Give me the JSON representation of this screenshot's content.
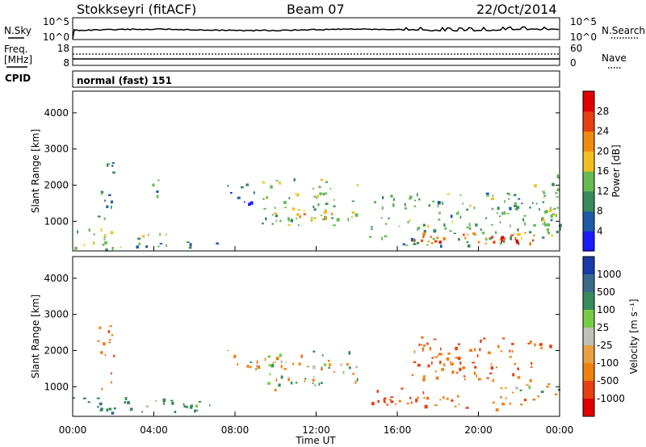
{
  "header": {
    "station": "Stokkseyri (fitACF)",
    "beam": "Beam 07",
    "date": "22/Oct/2014"
  },
  "noise_panel": {
    "left_label": "N.Sky",
    "left_ticks": [
      "10^5",
      "10^0"
    ],
    "right_ticks": [
      "10^5",
      "10^0"
    ],
    "right_label": "N.Search"
  },
  "freq_panel": {
    "left_label_1": "Freq.",
    "left_label_2": "[MHz]",
    "left_ticks": [
      "18",
      "8"
    ],
    "right_ticks": [
      "60",
      "0"
    ],
    "right_label": "Nave"
  },
  "cpid_panel": {
    "left_label": "CPID",
    "mode_text": "normal (fast) 151"
  },
  "x_axis": {
    "label": "Time UT",
    "ticks": [
      "00:00",
      "04:00",
      "08:00",
      "12:00",
      "16:00",
      "20:00",
      "00:00"
    ]
  },
  "y_axis": {
    "label": "Slant Range [km]",
    "ticks": [
      "1000",
      "2000",
      "3000",
      "4000"
    ]
  },
  "power_colorbar": {
    "label": "Power [dB]",
    "ticks": [
      "4",
      "8",
      "12",
      "16",
      "20",
      "24",
      "28"
    ],
    "colors": [
      "#1a1aff",
      "#1f5aa8",
      "#3a8a5a",
      "#66bb55",
      "#f0c020",
      "#f08a10",
      "#e84010",
      "#e00000"
    ]
  },
  "velocity_colorbar": {
    "label": "Velocity [m s⁻¹]",
    "ticks": [
      "1000",
      "500",
      "100",
      "25",
      "-25",
      "-100",
      "-500",
      "-1000"
    ],
    "colors": [
      "#1a3aa8",
      "#3a6a8a",
      "#3a8a5a",
      "#77cc44",
      "#c0c0b8",
      "#e8a040",
      "#f08010",
      "#e84010",
      "#e00000"
    ]
  },
  "chart_data": {
    "type": "heatmap",
    "title": "Stokkseyri (fitACF)",
    "xlabel": "Time UT",
    "ylabel": "Slant Range [km]",
    "xlim": [
      "00:00",
      "24:00"
    ],
    "ylim": [
      180,
      4600
    ],
    "panels": [
      {
        "name": "Power",
        "units": "dB",
        "clim": [
          0,
          32
        ],
        "regions": [
          {
            "t": [
              0.0,
              2.6
            ],
            "r": [
              250,
              900
            ],
            "value": 14
          },
          {
            "t": [
              1.2,
              2.0
            ],
            "r": [
              900,
              2800
            ],
            "value": 10
          },
          {
            "t": [
              2.6,
              8.0
            ],
            "r": [
              300,
              450
            ],
            "value": 10
          },
          {
            "t": [
              3.0,
              4.6
            ],
            "r": [
              300,
              800
            ],
            "value": 16
          },
          {
            "t": [
              3.6,
              4.2
            ],
            "r": [
              1500,
              2200
            ],
            "value": 10
          },
          {
            "t": [
              7.6,
              9.2
            ],
            "r": [
              1500,
              2100
            ],
            "value": 6
          },
          {
            "t": [
              9.2,
              14.0
            ],
            "r": [
              900,
              2200
            ],
            "value": 14
          },
          {
            "t": [
              10.5,
              14.0
            ],
            "r": [
              1000,
              1300
            ],
            "value": 20
          },
          {
            "t": [
              14.6,
              24.0
            ],
            "r": [
              350,
              1800
            ],
            "value": 12
          },
          {
            "t": [
              16.0,
              23.2
            ],
            "r": [
              350,
              700
            ],
            "value": 24
          },
          {
            "t": [
              17.5,
              22.8
            ],
            "r": [
              400,
              600
            ],
            "value": 28
          },
          {
            "t": [
              22.5,
              24.0
            ],
            "r": [
              600,
              2300
            ],
            "value": 14
          }
        ]
      },
      {
        "name": "Velocity",
        "units": "m s-1",
        "clim": [
          -1000,
          1000
        ],
        "regions": [
          {
            "t": [
              0.0,
              2.6
            ],
            "r": [
              250,
              800
            ],
            "value": 300
          },
          {
            "t": [
              1.2,
              2.0
            ],
            "r": [
              900,
              2800
            ],
            "value": -200
          },
          {
            "t": [
              2.6,
              7.6
            ],
            "r": [
              300,
              700
            ],
            "value": 100
          },
          {
            "t": [
              7.6,
              9.2
            ],
            "r": [
              1500,
              2100
            ],
            "value": 0
          },
          {
            "t": [
              9.2,
              14.0
            ],
            "r": [
              900,
              2000
            ],
            "value": 0
          },
          {
            "t": [
              14.6,
              17.6
            ],
            "r": [
              500,
              1000
            ],
            "value": -500
          },
          {
            "t": [
              16.0,
              23.0
            ],
            "r": [
              400,
              800
            ],
            "value": -200
          },
          {
            "t": [
              16.5,
              23.5
            ],
            "r": [
              1200,
              2400
            ],
            "value": -300
          },
          {
            "t": [
              21.0,
              24.0
            ],
            "r": [
              800,
              1200
            ],
            "value": 0
          }
        ]
      }
    ]
  }
}
